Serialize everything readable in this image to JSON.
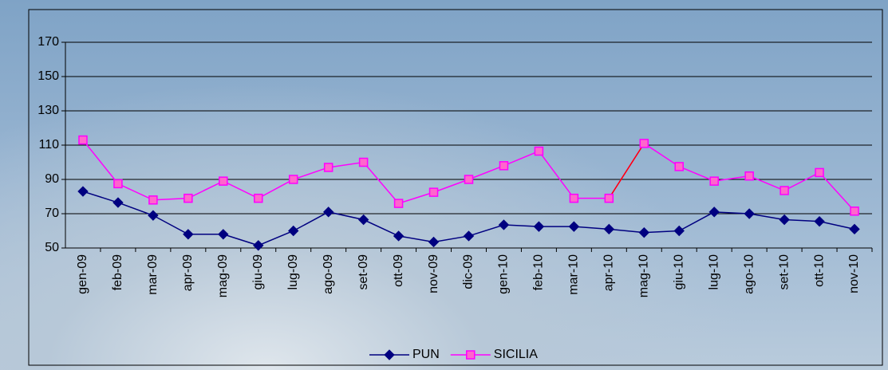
{
  "chart_data": {
    "type": "line",
    "categories": [
      "gen-09",
      "feb-09",
      "mar-09",
      "apr-09",
      "mag-09",
      "giu-09",
      "lug-09",
      "ago-09",
      "set-09",
      "ott-09",
      "nov-09",
      "dic-09",
      "gen-10",
      "feb-10",
      "mar-10",
      "apr-10",
      "mag-10",
      "giu-10",
      "lug-10",
      "ago-10",
      "set-10",
      "ott-10",
      "nov-10"
    ],
    "series": [
      {
        "name": "PUN",
        "color": "#000080",
        "marker": "diamond",
        "values": [
          83,
          76.5,
          69,
          58,
          58,
          51.5,
          60,
          71,
          66.5,
          57,
          53.5,
          57,
          63.5,
          62.5,
          62.5,
          61,
          59,
          60,
          71,
          70,
          66.5,
          65.5,
          61
        ]
      },
      {
        "name": "SICILIA",
        "color": "#ff00ff",
        "marker": "square",
        "highlight_segment": [
          15,
          16
        ],
        "highlight_color": "#ff0000",
        "values": [
          113,
          87.5,
          78,
          79,
          89,
          79,
          90,
          97,
          100,
          76,
          82.5,
          90,
          98,
          106.5,
          79,
          79,
          111,
          97.5,
          89,
          92,
          83.5,
          94,
          71.5
        ]
      }
    ],
    "ylim": [
      50,
      170
    ],
    "yticks": [
      50,
      70,
      90,
      110,
      130,
      150,
      170
    ],
    "grid": true,
    "legend": "bottom"
  }
}
